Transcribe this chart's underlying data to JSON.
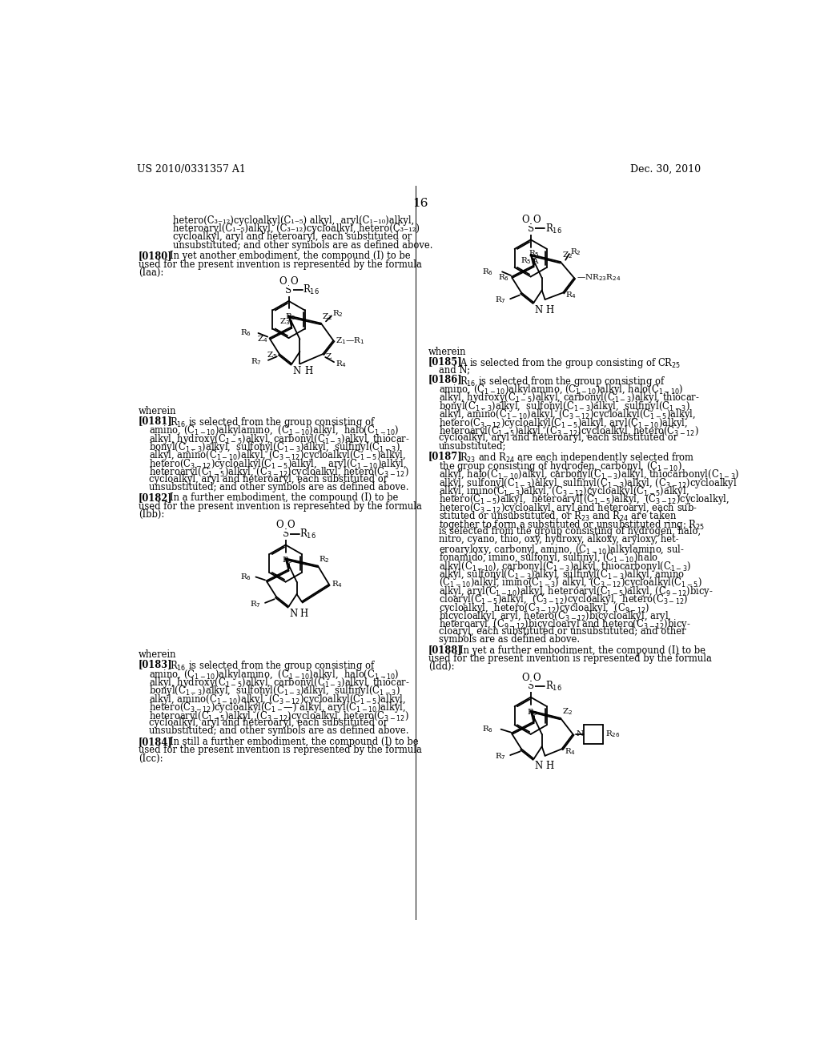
{
  "background_color": "#ffffff",
  "header_left": "US 2010/0331357 A1",
  "header_right": "Dec. 30, 2010",
  "page_number": "16"
}
